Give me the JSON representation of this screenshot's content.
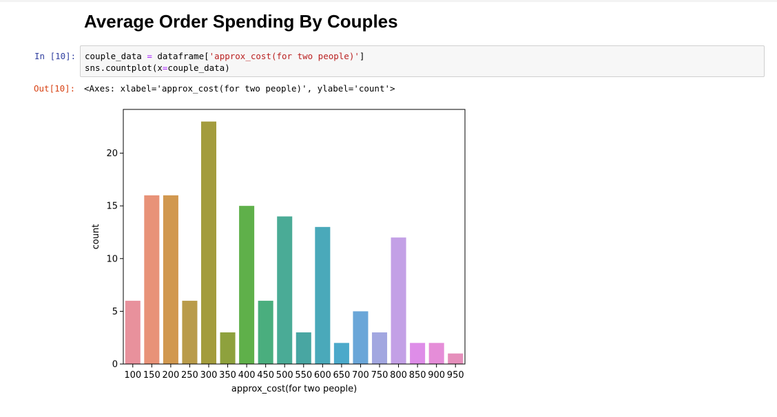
{
  "notebook": {
    "heading": "Average Order Spending By Couples",
    "cell": {
      "in_prompt": "In [10]:",
      "out_prompt": "Out[10]:",
      "code": {
        "line1": {
          "var": "couple_data ",
          "eq": "=",
          "mid": " dataframe[",
          "str": "'approx_cost(for two people)'",
          "end": "]"
        },
        "line2": {
          "start": "sns.countplot(x",
          "eq": "=",
          "end": "couple_data)"
        }
      },
      "output_text": "<Axes: xlabel='approx_cost(for two people)', ylabel='count'>"
    }
  },
  "chart_data": {
    "type": "bar",
    "title": "",
    "xlabel": "approx_cost(for two people)",
    "ylabel": "count",
    "ylim": [
      0,
      24.15
    ],
    "yticks": [
      0,
      5,
      10,
      15,
      20
    ],
    "categories": [
      "100",
      "150",
      "200",
      "250",
      "300",
      "350",
      "400",
      "450",
      "500",
      "550",
      "600",
      "650",
      "700",
      "750",
      "800",
      "850",
      "900",
      "950"
    ],
    "values": [
      6,
      16,
      16,
      6,
      23,
      3,
      15,
      6,
      14,
      3,
      13,
      2,
      5,
      3,
      12,
      2,
      2,
      1
    ],
    "colors": [
      "#e8919c",
      "#e89278",
      "#d1984f",
      "#b99b4a",
      "#a39c3d",
      "#8ea13d",
      "#5fb04a",
      "#4aae7e",
      "#4aab96",
      "#48a6a2",
      "#4aa9ba",
      "#4ba9ca",
      "#6aa6d8",
      "#a2a7e0",
      "#c3a0e6",
      "#de8de8",
      "#e58dd8",
      "#e58fbb"
    ],
    "grid": false,
    "legend": "none"
  }
}
